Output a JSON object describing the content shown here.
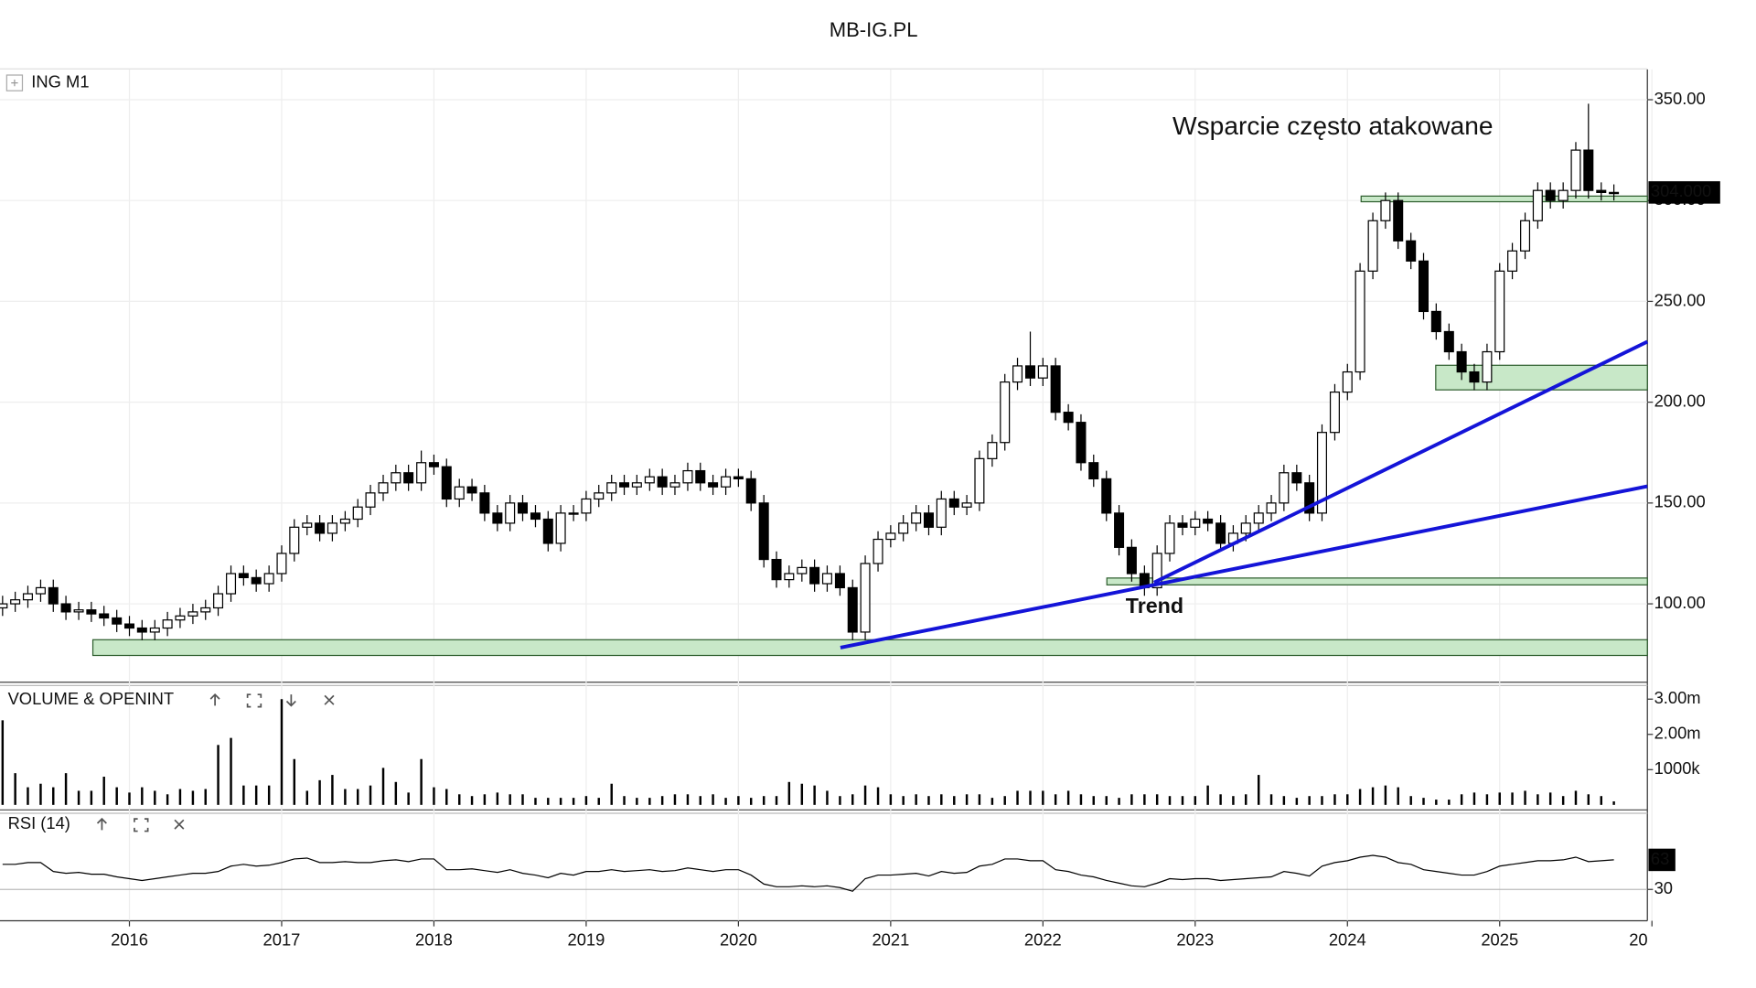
{
  "page_title": "MB-IG.PL",
  "chart_data": [
    {
      "type": "candlestick",
      "title": "ING M1",
      "grid": true,
      "up_color": "#ffffff",
      "down_color": "#000000",
      "x": [
        2015.167,
        2015.25,
        2015.333,
        2015.417,
        2015.5,
        2015.583,
        2015.667,
        2015.75,
        2015.833,
        2015.917,
        2016,
        2016.083,
        2016.167,
        2016.25,
        2016.333,
        2016.417,
        2016.5,
        2016.583,
        2016.667,
        2016.75,
        2016.833,
        2016.917,
        2017,
        2017.083,
        2017.167,
        2017.25,
        2017.333,
        2017.417,
        2017.5,
        2017.583,
        2017.667,
        2017.75,
        2017.833,
        2017.917,
        2018,
        2018.083,
        2018.167,
        2018.25,
        2018.333,
        2018.417,
        2018.5,
        2018.583,
        2018.667,
        2018.75,
        2018.833,
        2018.917,
        2019,
        2019.083,
        2019.167,
        2019.25,
        2019.333,
        2019.417,
        2019.5,
        2019.583,
        2019.667,
        2019.75,
        2019.833,
        2019.917,
        2020,
        2020.083,
        2020.167,
        2020.25,
        2020.333,
        2020.417,
        2020.5,
        2020.583,
        2020.667,
        2020.75,
        2020.833,
        2020.917,
        2021,
        2021.083,
        2021.167,
        2021.25,
        2021.333,
        2021.417,
        2021.5,
        2021.583,
        2021.667,
        2021.75,
        2021.833,
        2021.917,
        2022,
        2022.083,
        2022.167,
        2022.25,
        2022.333,
        2022.417,
        2022.5,
        2022.583,
        2022.667,
        2022.75,
        2022.833,
        2022.917,
        2023,
        2023.083,
        2023.167,
        2023.25,
        2023.333,
        2023.417,
        2023.5,
        2023.583,
        2023.667,
        2023.75,
        2023.833,
        2023.917,
        2024,
        2024.083,
        2024.167,
        2024.25,
        2024.333,
        2024.417,
        2024.5,
        2024.583,
        2024.667,
        2024.75,
        2024.833,
        2024.917,
        2025,
        2025.083,
        2025.167,
        2025.25,
        2025.333,
        2025.417,
        2025.5,
        2025.583,
        2025.667,
        2025.75
      ],
      "open": [
        98,
        100,
        102,
        105,
        108,
        100,
        96,
        97,
        95,
        93,
        90,
        88,
        86,
        88,
        92,
        94,
        96,
        98,
        105,
        115,
        113,
        110,
        115,
        125,
        138,
        140,
        135,
        140,
        142,
        148,
        155,
        160,
        165,
        160,
        170,
        168,
        152,
        158,
        155,
        145,
        140,
        150,
        145,
        142,
        130,
        145,
        145,
        152,
        155,
        160,
        158,
        160,
        163,
        158,
        160,
        166,
        160,
        158,
        163,
        162,
        150,
        122,
        112,
        115,
        118,
        110,
        115,
        108,
        86,
        120,
        132,
        135,
        140,
        145,
        138,
        152,
        148,
        150,
        172,
        180,
        210,
        218,
        212,
        218,
        195,
        190,
        170,
        162,
        145,
        128,
        115,
        108,
        125,
        140,
        138,
        142,
        140,
        130,
        135,
        140,
        145,
        150,
        165,
        160,
        145,
        185,
        205,
        215,
        265,
        290,
        300,
        280,
        270,
        245,
        235,
        225,
        215,
        210,
        225,
        265,
        275,
        290,
        305,
        300,
        305,
        325,
        305,
        304
      ],
      "high": [
        104,
        106,
        109,
        112,
        112,
        104,
        101,
        101,
        99,
        97,
        94,
        92,
        92,
        96,
        98,
        100,
        102,
        109,
        119,
        119,
        117,
        119,
        129,
        142,
        144,
        144,
        144,
        146,
        152,
        159,
        164,
        169,
        169,
        176,
        174,
        172,
        162,
        162,
        159,
        149,
        154,
        154,
        149,
        146,
        149,
        149,
        156,
        159,
        164,
        164,
        164,
        167,
        167,
        164,
        170,
        170,
        164,
        167,
        167,
        166,
        154,
        126,
        119,
        122,
        122,
        119,
        119,
        112,
        124,
        136,
        139,
        144,
        149,
        149,
        156,
        156,
        154,
        176,
        184,
        214,
        222,
        235,
        222,
        222,
        199,
        194,
        174,
        166,
        149,
        132,
        119,
        129,
        144,
        144,
        146,
        146,
        144,
        139,
        144,
        149,
        154,
        169,
        169,
        164,
        189,
        209,
        219,
        269,
        294,
        304,
        304,
        284,
        274,
        249,
        239,
        229,
        219,
        229,
        269,
        279,
        294,
        309,
        309,
        309,
        329,
        348,
        309,
        308
      ],
      "low": [
        94,
        96,
        98,
        101,
        96,
        92,
        92,
        91,
        89,
        86,
        84,
        82,
        82,
        84,
        88,
        90,
        92,
        94,
        101,
        109,
        106,
        106,
        111,
        121,
        134,
        131,
        131,
        136,
        138,
        144,
        151,
        156,
        156,
        156,
        164,
        148,
        148,
        151,
        141,
        136,
        136,
        141,
        138,
        126,
        126,
        141,
        141,
        148,
        151,
        154,
        154,
        156,
        154,
        154,
        156,
        156,
        154,
        154,
        158,
        146,
        118,
        108,
        108,
        111,
        106,
        106,
        104,
        82,
        82,
        116,
        128,
        131,
        136,
        134,
        134,
        144,
        144,
        146,
        168,
        176,
        206,
        208,
        208,
        191,
        186,
        166,
        158,
        141,
        124,
        111,
        104,
        104,
        121,
        134,
        134,
        136,
        126,
        126,
        131,
        136,
        141,
        146,
        156,
        141,
        141,
        181,
        201,
        211,
        261,
        286,
        276,
        266,
        241,
        231,
        221,
        211,
        206,
        206,
        221,
        261,
        271,
        286,
        296,
        296,
        301,
        301,
        300,
        300
      ],
      "close": [
        100,
        102,
        105,
        108,
        100,
        96,
        97,
        95,
        93,
        90,
        88,
        86,
        88,
        92,
        94,
        96,
        98,
        105,
        115,
        113,
        110,
        115,
        125,
        138,
        140,
        135,
        140,
        142,
        148,
        155,
        160,
        165,
        160,
        170,
        168,
        152,
        158,
        155,
        145,
        140,
        150,
        145,
        142,
        130,
        145,
        145,
        152,
        155,
        160,
        158,
        160,
        163,
        158,
        160,
        166,
        160,
        158,
        163,
        162,
        150,
        122,
        112,
        115,
        118,
        110,
        115,
        108,
        86,
        120,
        132,
        135,
        140,
        145,
        138,
        152,
        148,
        150,
        172,
        180,
        210,
        218,
        212,
        218,
        195,
        190,
        170,
        162,
        145,
        128,
        115,
        108,
        125,
        140,
        138,
        142,
        140,
        130,
        135,
        140,
        145,
        150,
        165,
        160,
        145,
        185,
        205,
        215,
        265,
        290,
        300,
        280,
        270,
        245,
        235,
        225,
        215,
        210,
        225,
        265,
        275,
        290,
        305,
        300,
        305,
        325,
        305,
        304,
        304
      ],
      "xlim": [
        2015.15,
        2025.97
      ],
      "xticks": [
        2016,
        2017,
        2018,
        2019,
        2020,
        2021,
        2022,
        2023,
        2024,
        2025,
        {
          "value": 2026,
          "label": "20"
        }
      ],
      "ylim": [
        61.7,
        365
      ],
      "yticks": [
        {
          "value": 100,
          "label": "100.00"
        },
        {
          "value": 150,
          "label": "150.00"
        },
        {
          "value": 200,
          "label": "200.00"
        },
        {
          "value": 250,
          "label": "250.00"
        },
        {
          "value": 300,
          "label": "300.00"
        },
        {
          "value": 350,
          "label": "350.00"
        }
      ],
      "last_price": {
        "value": 304,
        "label": "304.000"
      },
      "line_color": "#1414d8",
      "zone_color": "#c8e8c8",
      "trend_lines": [
        {
          "x": [
            2020.67,
            2025.97
          ],
          "y": [
            78.3,
            158.3
          ]
        },
        {
          "x": [
            2022.73,
            2025.97
          ],
          "y": [
            110.6,
            230
          ]
        }
      ],
      "zones": [
        {
          "x": 2015.76,
          "y": [
            74.4,
            82.2
          ]
        },
        {
          "x": 2022.42,
          "y": [
            109.4,
            112.8
          ]
        },
        {
          "x": 2024.58,
          "y": [
            206.1,
            218.3
          ]
        },
        {
          "x": 2024.09,
          "y": [
            299.4,
            302.2
          ]
        }
      ],
      "annotations": [
        {
          "text": "Wsparcie często atakowane",
          "color": "#b000f0"
        },
        {
          "text": "Trend",
          "color": "#1414d8"
        }
      ]
    },
    {
      "type": "bar",
      "title": "VOLUME & OPENINT",
      "color": "#000000",
      "values": [
        2400000,
        900000,
        500000,
        600000,
        500000,
        900000,
        400000,
        400000,
        800000,
        500000,
        350000,
        500000,
        400000,
        300000,
        450000,
        400000,
        450000,
        1700000,
        1900000,
        550000,
        550000,
        550000,
        3000000,
        1300000,
        400000,
        700000,
        850000,
        450000,
        450000,
        550000,
        1050000,
        650000,
        350000,
        1300000,
        500000,
        450000,
        300000,
        250000,
        300000,
        350000,
        300000,
        300000,
        200000,
        200000,
        200000,
        200000,
        250000,
        200000,
        600000,
        250000,
        200000,
        200000,
        250000,
        300000,
        300000,
        250000,
        300000,
        200000,
        250000,
        200000,
        250000,
        250000,
        650000,
        600000,
        550000,
        400000,
        250000,
        300000,
        550000,
        500000,
        300000,
        250000,
        300000,
        250000,
        300000,
        250000,
        300000,
        300000,
        200000,
        250000,
        400000,
        400000,
        400000,
        300000,
        400000,
        300000,
        250000,
        250000,
        200000,
        300000,
        300000,
        300000,
        250000,
        250000,
        250000,
        550000,
        300000,
        250000,
        300000,
        850000,
        300000,
        250000,
        200000,
        250000,
        250000,
        300000,
        300000,
        450000,
        500000,
        550000,
        500000,
        250000,
        200000,
        150000,
        150000,
        300000,
        350000,
        300000,
        350000,
        350000,
        400000,
        300000,
        350000,
        250000,
        400000,
        300000,
        250000,
        100000
      ],
      "ylim": [
        -110000,
        3290000
      ],
      "yticks": [
        {
          "value": 1000000,
          "label": "1000k"
        },
        {
          "value": 2000000,
          "label": "2.00m"
        },
        {
          "value": 3000000,
          "label": "3.00m"
        }
      ]
    },
    {
      "type": "line",
      "title": "RSI (14)",
      "color": "#000000",
      "values": [
        58,
        58,
        60,
        60,
        50,
        48,
        49,
        47,
        47,
        44,
        42,
        40,
        42,
        44,
        46,
        48,
        48,
        50,
        56,
        58,
        56,
        57,
        60,
        64,
        65,
        60,
        60,
        61,
        60,
        60,
        62,
        63,
        61,
        64,
        64,
        52,
        52,
        53,
        51,
        49,
        52,
        48,
        46,
        43,
        48,
        46,
        50,
        50,
        52,
        50,
        51,
        52,
        50,
        51,
        54,
        52,
        50,
        52,
        52,
        46,
        36,
        33,
        33,
        34,
        33,
        34,
        32,
        28,
        42,
        46,
        46,
        47,
        48,
        45,
        50,
        48,
        49,
        56,
        58,
        64,
        64,
        62,
        62,
        52,
        50,
        46,
        44,
        40,
        37,
        34,
        33,
        37,
        42,
        41,
        42,
        42,
        40,
        41,
        42,
        43,
        44,
        50,
        48,
        45,
        56,
        60,
        62,
        66,
        68,
        66,
        60,
        58,
        52,
        50,
        48,
        46,
        46,
        50,
        56,
        58,
        60,
        62,
        62,
        63,
        66,
        61,
        62,
        63
      ],
      "ylim": [
        0,
        100
      ],
      "yticks": [
        30
      ],
      "last_value": 63
    }
  ]
}
